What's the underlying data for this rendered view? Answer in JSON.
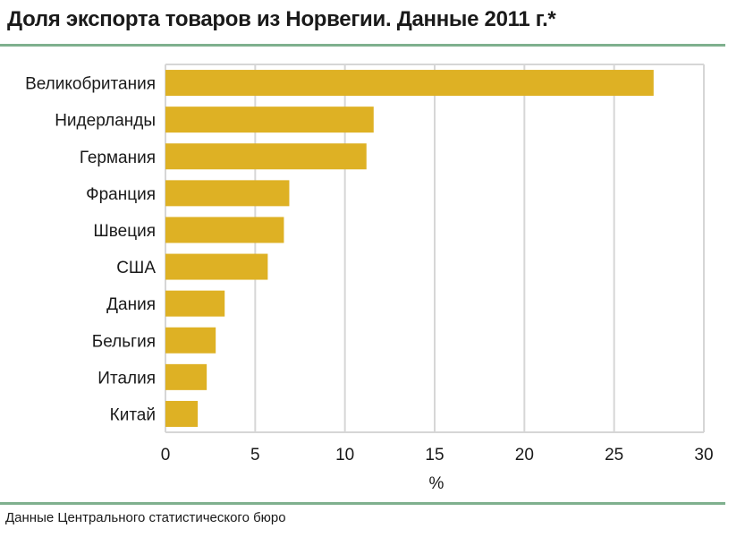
{
  "title": "Доля экспорта товаров из Норвегии. Данные 2011 г.*",
  "source": "Данные Центрального статистического бюро",
  "colors": {
    "bar": "#deb124",
    "grid": "#d6d6d6",
    "rule": "#7fb08e"
  },
  "chart_data": {
    "type": "bar",
    "orientation": "horizontal",
    "categories": [
      "Великобритания",
      "Нидерланды",
      "Германия",
      "Франция",
      "Швеция",
      "США",
      "Дания",
      "Бельгия",
      "Италия",
      "Китай"
    ],
    "values": [
      27.2,
      11.6,
      11.2,
      6.9,
      6.6,
      5.7,
      3.3,
      2.8,
      2.3,
      1.8
    ],
    "xlabel": "%",
    "xlim": [
      0,
      30
    ],
    "xticks": [
      0,
      5,
      10,
      15,
      20,
      25,
      30
    ],
    "grid": true,
    "legend": "none"
  }
}
